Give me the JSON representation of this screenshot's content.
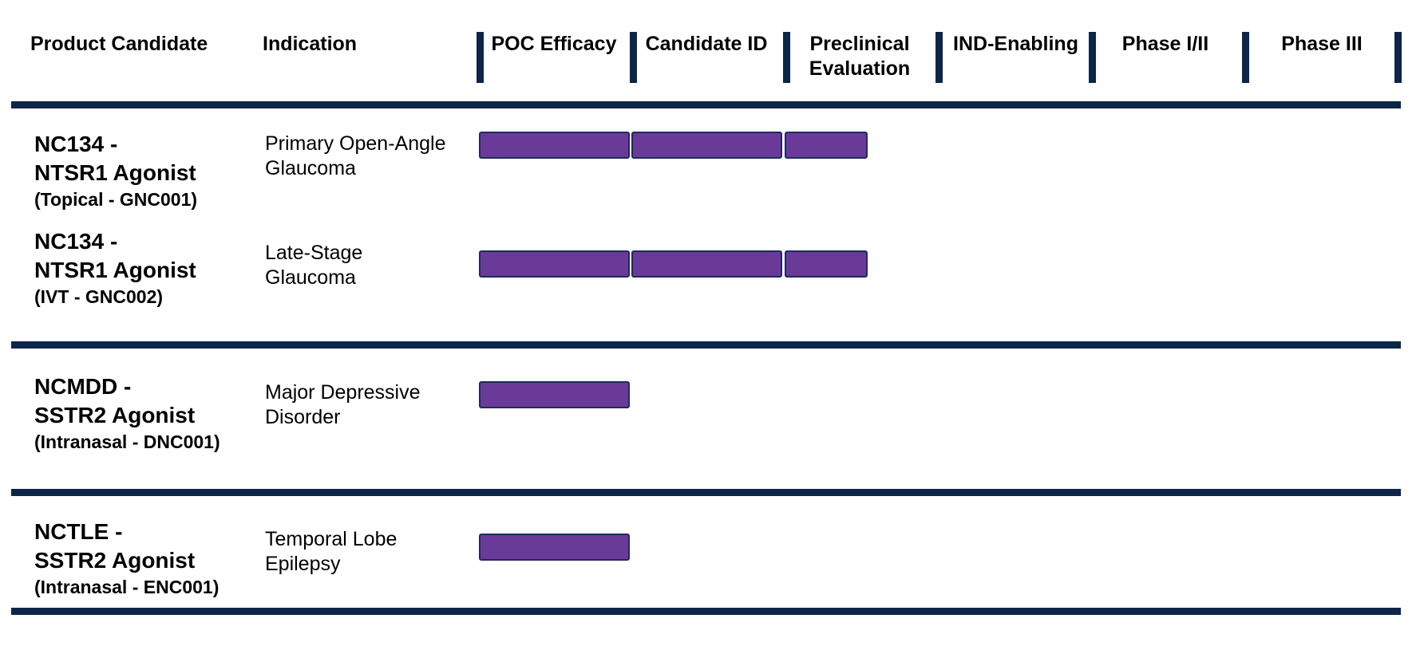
{
  "headers": {
    "candidate": "Product Candidate",
    "indication": "Indication",
    "stages": [
      {
        "line1": "POC Efficacy",
        "line2": ""
      },
      {
        "line1": "Candidate ID",
        "line2": ""
      },
      {
        "line1": "Preclinical",
        "line2": "Evaluation"
      },
      {
        "line1": "IND-Enabling",
        "line2": ""
      },
      {
        "line1": "Phase I/II",
        "line2": ""
      },
      {
        "line1": "Phase III",
        "line2": ""
      }
    ]
  },
  "colors": {
    "bar_fill": "#6a3a99",
    "bar_border": "#1f2a5e",
    "rule": "#0c2548"
  },
  "chart_data": {
    "type": "table",
    "stages": [
      "POC Efficacy",
      "Candidate ID",
      "Preclinical Evaluation",
      "IND-Enabling",
      "Phase I/II",
      "Phase III"
    ],
    "rows": [
      {
        "name1": "NC134 -",
        "name2": "NTSR1 Agonist",
        "route": "(Topical - GNC001)",
        "ind1": "Primary Open-Angle",
        "ind2": "Glaucoma",
        "progress": 2.55
      },
      {
        "name1": "NC134 -",
        "name2": "NTSR1 Agonist",
        "route": "(IVT - GNC002)",
        "ind1": "Late-Stage",
        "ind2": "Glaucoma",
        "progress": 2.55
      },
      {
        "name1": "NCMDD -",
        "name2": "SSTR2 Agonist",
        "route": "(Intranasal - DNC001)",
        "ind1": "Major Depressive",
        "ind2": "Disorder",
        "progress": 1
      },
      {
        "name1": "NCTLE -",
        "name2": "SSTR2 Agonist",
        "route": "(Intranasal - ENC001)",
        "ind1": "Temporal Lobe",
        "ind2": "Epilepsy",
        "progress": 1
      }
    ]
  }
}
